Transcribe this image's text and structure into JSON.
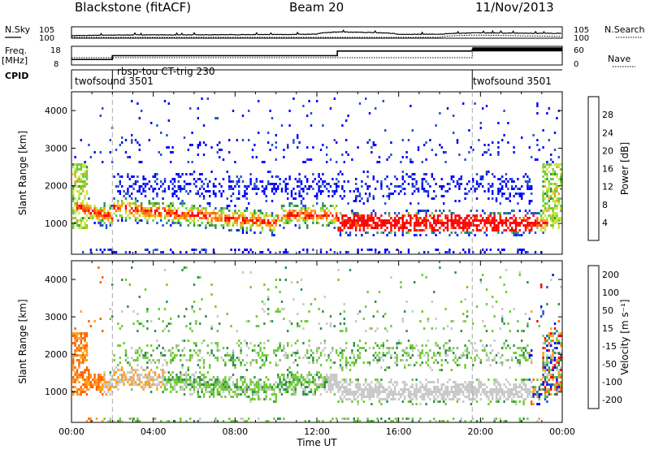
{
  "header": {
    "station": "Blackstone (fitACF)",
    "beam": "Beam 20",
    "date": "11/Nov/2013"
  },
  "left_labels": {
    "nsky": "N.Sky",
    "freq": "Freq.",
    "freq_unit": "[MHz]",
    "cpid": "CPID"
  },
  "right_labels": {
    "nsearch": "N.Search",
    "nave": "Nave"
  },
  "cpid_labels": [
    "twofsound 3501",
    "rbsp-tou CT-trig 230",
    "twofsound 3501"
  ],
  "chart_data": [
    {
      "type": "line",
      "panel": "noise",
      "yscale": "log",
      "left_ticks": [
        "10^5",
        "10^0"
      ],
      "right_ticks": [
        "10^5",
        "10^0"
      ],
      "x": [
        "00:00",
        "02:00",
        "04:00",
        "06:00",
        "08:00",
        "10:00",
        "12:00",
        "13:00",
        "14:45",
        "16:00",
        "18:00",
        "19:40",
        "22:00",
        "24:00"
      ],
      "series": [
        {
          "name": "N.Sky",
          "values": [
            8,
            15,
            20,
            20,
            25,
            30,
            40,
            600,
            300,
            40,
            40,
            200,
            150,
            120
          ]
        },
        {
          "name": "N.Search",
          "values": [
            1,
            1,
            1,
            1,
            1,
            1,
            1,
            1,
            1,
            1,
            1,
            15,
            6,
            3
          ]
        }
      ]
    },
    {
      "type": "line",
      "panel": "frequency",
      "left_ylim": [
        8,
        18
      ],
      "left_ticks": [
        "18",
        "8"
      ],
      "right_ylim": [
        0,
        60
      ],
      "right_ticks": [
        "60",
        "0"
      ],
      "x_hours": [
        0,
        2,
        13,
        19.6,
        24
      ],
      "frequency_mhz": [
        10.5,
        13,
        16,
        17,
        17
      ],
      "nave": [
        22,
        22,
        22,
        50,
        50
      ]
    },
    {
      "type": "heatmap",
      "panel": "power",
      "xlabel": "",
      "ylabel": "Slant Range [km]",
      "xlim_hours": [
        0,
        24
      ],
      "ylim_km": [
        180,
        4500
      ],
      "yticks": [
        "1000",
        "2000",
        "3000",
        "4000"
      ],
      "colorbar": {
        "label": "Power [dB]",
        "ticks": [
          "4",
          "8",
          "12",
          "16",
          "20",
          "24",
          "28"
        ],
        "colors": [
          "#0000ff",
          "#2450c8",
          "#2f8f4a",
          "#6ecb35",
          "#c8e63a",
          "#ffa01e",
          "#ff6400",
          "#ff0000"
        ]
      },
      "features": [
        {
          "name": "main-echo-band",
          "x_hours": [
            0.5,
            23.2
          ],
          "center_km": [
            1500,
            1050
          ],
          "max_db": 30
        },
        {
          "name": "upper-scatter",
          "x_hours": [
            2.0,
            22.5
          ],
          "center_km": [
            2000,
            2000
          ],
          "max_db": 12
        }
      ]
    },
    {
      "type": "heatmap",
      "panel": "velocity",
      "xlabel": "Time UT",
      "ylabel": "Slant Range [km]",
      "xlim_hours": [
        0,
        24
      ],
      "xticks": [
        "00:00",
        "04:00",
        "08:00",
        "12:00",
        "16:00",
        "20:00",
        "00:00"
      ],
      "ylim_km": [
        180,
        4500
      ],
      "yticks": [
        "1000",
        "2000",
        "3000",
        "4000"
      ],
      "colorbar": {
        "label": "Velocity [m s⁻¹]",
        "ticks": [
          "200",
          "100",
          "50",
          "15",
          "-15",
          "-50",
          "-100",
          "-200"
        ],
        "colors": [
          "#0000ff",
          "#2450c8",
          "#2f8f4a",
          "#6ecb35",
          "#c8c8c8",
          "#ffa01e",
          "#ff6400",
          "#ff0000"
        ]
      }
    }
  ]
}
